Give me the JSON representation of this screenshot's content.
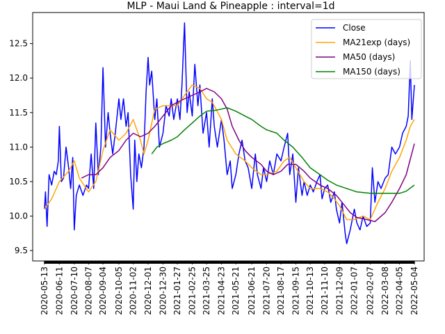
{
  "chart_data": {
    "type": "line",
    "title": "MLP - Maui Land & Pineapple : interval=1d",
    "xlabel": "",
    "ylabel": "",
    "xlim": [
      "2020-04-20",
      "2022-05-23"
    ],
    "ylim": [
      9.35,
      12.95
    ],
    "y_ticks": [
      "9.5",
      "10.0",
      "10.5",
      "11.0",
      "11.5",
      "12.0",
      "12.5"
    ],
    "x_ticks": [
      "2020-05-13",
      "2020-06-11",
      "2020-07-10",
      "2020-08-07",
      "2020-09-04",
      "2020-10-05",
      "2020-11-02",
      "2020-12-01",
      "2020-12-30",
      "2021-01-27",
      "2021-02-25",
      "2021-03-25",
      "2021-04-23",
      "2021-05-21",
      "2021-06-21",
      "2021-07-20",
      "2021-08-17",
      "2021-09-15",
      "2021-10-13",
      "2021-11-10",
      "2021-12-09",
      "2022-01-07",
      "2022-02-07",
      "2022-03-08",
      "2022-04-05",
      "2022-05-04"
    ],
    "legend_position": "top-right",
    "grid": false,
    "series": [
      {
        "name": "Close",
        "color": "#0000ff",
        "points": [
          [
            "2020-05-13",
            10.1
          ],
          [
            "2020-05-15",
            10.35
          ],
          [
            "2020-05-18",
            9.85
          ],
          [
            "2020-05-20",
            10.2
          ],
          [
            "2020-05-22",
            10.6
          ],
          [
            "2020-05-27",
            10.45
          ],
          [
            "2020-06-01",
            10.65
          ],
          [
            "2020-06-05",
            10.6
          ],
          [
            "2020-06-09",
            10.8
          ],
          [
            "2020-06-11",
            11.3
          ],
          [
            "2020-06-15",
            10.5
          ],
          [
            "2020-06-19",
            10.55
          ],
          [
            "2020-06-24",
            11.0
          ],
          [
            "2020-06-29",
            10.7
          ],
          [
            "2020-07-03",
            10.4
          ],
          [
            "2020-07-07",
            10.85
          ],
          [
            "2020-07-10",
            9.8
          ],
          [
            "2020-07-14",
            10.3
          ],
          [
            "2020-07-20",
            10.45
          ],
          [
            "2020-07-27",
            10.3
          ],
          [
            "2020-08-03",
            10.45
          ],
          [
            "2020-08-07",
            10.4
          ],
          [
            "2020-08-12",
            10.9
          ],
          [
            "2020-08-17",
            10.4
          ],
          [
            "2020-08-21",
            11.35
          ],
          [
            "2020-08-26",
            10.6
          ],
          [
            "2020-08-31",
            11.0
          ],
          [
            "2020-09-04",
            12.15
          ],
          [
            "2020-09-09",
            11.0
          ],
          [
            "2020-09-14",
            11.5
          ],
          [
            "2020-09-18",
            11.2
          ],
          [
            "2020-09-23",
            10.9
          ],
          [
            "2020-09-28",
            11.2
          ],
          [
            "2020-10-05",
            11.7
          ],
          [
            "2020-10-09",
            11.4
          ],
          [
            "2020-10-14",
            11.7
          ],
          [
            "2020-10-19",
            11.3
          ],
          [
            "2020-10-23",
            11.5
          ],
          [
            "2020-10-28",
            10.6
          ],
          [
            "2020-11-02",
            10.1
          ],
          [
            "2020-11-05",
            11.1
          ],
          [
            "2020-11-09",
            10.5
          ],
          [
            "2020-11-13",
            10.9
          ],
          [
            "2020-11-18",
            10.7
          ],
          [
            "2020-11-23",
            11.0
          ],
          [
            "2020-11-27",
            11.8
          ],
          [
            "2020-12-01",
            12.3
          ],
          [
            "2020-12-04",
            11.9
          ],
          [
            "2020-12-08",
            12.1
          ],
          [
            "2020-12-14",
            11.4
          ],
          [
            "2020-12-18",
            11.7
          ],
          [
            "2020-12-23",
            11.0
          ],
          [
            "2020-12-30",
            11.2
          ],
          [
            "2021-01-05",
            11.6
          ],
          [
            "2021-01-11",
            11.45
          ],
          [
            "2021-01-15",
            11.7
          ],
          [
            "2021-01-20",
            11.4
          ],
          [
            "2021-01-27",
            11.7
          ],
          [
            "2021-02-01",
            11.4
          ],
          [
            "2021-02-05",
            11.9
          ],
          [
            "2021-02-10",
            12.8
          ],
          [
            "2021-02-15",
            11.5
          ],
          [
            "2021-02-19",
            11.8
          ],
          [
            "2021-02-25",
            11.45
          ],
          [
            "2021-03-02",
            12.2
          ],
          [
            "2021-03-08",
            11.6
          ],
          [
            "2021-03-12",
            11.9
          ],
          [
            "2021-03-18",
            11.2
          ],
          [
            "2021-03-25",
            11.5
          ],
          [
            "2021-03-30",
            11.0
          ],
          [
            "2021-04-05",
            11.7
          ],
          [
            "2021-04-09",
            11.3
          ],
          [
            "2021-04-15",
            11.0
          ],
          [
            "2021-04-23",
            11.4
          ],
          [
            "2021-04-28",
            11.1
          ],
          [
            "2021-05-04",
            10.6
          ],
          [
            "2021-05-10",
            10.8
          ],
          [
            "2021-05-14",
            10.4
          ],
          [
            "2021-05-21",
            10.6
          ],
          [
            "2021-05-27",
            10.9
          ],
          [
            "2021-06-02",
            11.1
          ],
          [
            "2021-06-08",
            10.8
          ],
          [
            "2021-06-14",
            10.7
          ],
          [
            "2021-06-21",
            10.4
          ],
          [
            "2021-06-28",
            10.9
          ],
          [
            "2021-07-02",
            10.6
          ],
          [
            "2021-07-09",
            10.4
          ],
          [
            "2021-07-14",
            10.7
          ],
          [
            "2021-07-20",
            10.5
          ],
          [
            "2021-07-26",
            10.8
          ],
          [
            "2021-08-02",
            10.6
          ],
          [
            "2021-08-09",
            10.9
          ],
          [
            "2021-08-17",
            10.8
          ],
          [
            "2021-08-23",
            11.0
          ],
          [
            "2021-08-30",
            11.2
          ],
          [
            "2021-09-03",
            10.6
          ],
          [
            "2021-09-09",
            10.9
          ],
          [
            "2021-09-15",
            10.2
          ],
          [
            "2021-09-20",
            10.7
          ],
          [
            "2021-09-27",
            10.3
          ],
          [
            "2021-10-01",
            10.5
          ],
          [
            "2021-10-07",
            10.3
          ],
          [
            "2021-10-13",
            10.45
          ],
          [
            "2021-10-19",
            10.35
          ],
          [
            "2021-10-26",
            10.5
          ],
          [
            "2021-11-01",
            10.6
          ],
          [
            "2021-11-05",
            10.25
          ],
          [
            "2021-11-10",
            10.4
          ],
          [
            "2021-11-16",
            10.45
          ],
          [
            "2021-11-22",
            10.2
          ],
          [
            "2021-11-29",
            10.35
          ],
          [
            "2021-12-03",
            10.1
          ],
          [
            "2021-12-09",
            9.9
          ],
          [
            "2021-12-14",
            10.2
          ],
          [
            "2021-12-20",
            9.75
          ],
          [
            "2021-12-23",
            9.6
          ],
          [
            "2021-12-30",
            9.8
          ],
          [
            "2022-01-07",
            10.1
          ],
          [
            "2022-01-12",
            9.9
          ],
          [
            "2022-01-18",
            9.8
          ],
          [
            "2022-01-24",
            10.0
          ],
          [
            "2022-01-31",
            9.85
          ],
          [
            "2022-02-07",
            9.9
          ],
          [
            "2022-02-11",
            10.7
          ],
          [
            "2022-02-16",
            10.2
          ],
          [
            "2022-02-22",
            10.5
          ],
          [
            "2022-02-28",
            10.4
          ],
          [
            "2022-03-08",
            10.55
          ],
          [
            "2022-03-14",
            10.6
          ],
          [
            "2022-03-21",
            11.0
          ],
          [
            "2022-03-28",
            10.9
          ],
          [
            "2022-04-05",
            11.0
          ],
          [
            "2022-04-11",
            11.2
          ],
          [
            "2022-04-18",
            11.3
          ],
          [
            "2022-04-22",
            11.45
          ],
          [
            "2022-04-26",
            12.25
          ],
          [
            "2022-04-29",
            11.4
          ],
          [
            "2022-05-04",
            11.9
          ]
        ]
      },
      {
        "name": "MA21exp (days)",
        "color": "#ffa500",
        "points": [
          [
            "2020-05-13",
            10.1
          ],
          [
            "2020-05-27",
            10.25
          ],
          [
            "2020-06-11",
            10.5
          ],
          [
            "2020-06-29",
            10.65
          ],
          [
            "2020-07-10",
            10.8
          ],
          [
            "2020-07-20",
            10.55
          ],
          [
            "2020-08-07",
            10.35
          ],
          [
            "2020-08-21",
            10.5
          ],
          [
            "2020-09-04",
            10.95
          ],
          [
            "2020-09-18",
            11.25
          ],
          [
            "2020-10-05",
            11.1
          ],
          [
            "2020-10-19",
            11.2
          ],
          [
            "2020-11-02",
            11.4
          ],
          [
            "2020-11-16",
            11.1
          ],
          [
            "2020-11-23",
            10.9
          ],
          [
            "2020-12-01",
            11.1
          ],
          [
            "2020-12-14",
            11.55
          ],
          [
            "2020-12-30",
            11.6
          ],
          [
            "2021-01-27",
            11.6
          ],
          [
            "2021-02-10",
            11.75
          ],
          [
            "2021-02-25",
            11.9
          ],
          [
            "2021-03-12",
            11.85
          ],
          [
            "2021-03-25",
            11.7
          ],
          [
            "2021-04-05",
            11.65
          ],
          [
            "2021-04-23",
            11.4
          ],
          [
            "2021-05-04",
            11.1
          ],
          [
            "2021-05-21",
            10.9
          ],
          [
            "2021-06-08",
            10.8
          ],
          [
            "2021-06-21",
            10.7
          ],
          [
            "2021-07-09",
            10.6
          ],
          [
            "2021-07-20",
            10.6
          ],
          [
            "2021-08-09",
            10.65
          ],
          [
            "2021-08-23",
            10.8
          ],
          [
            "2021-09-03",
            10.85
          ],
          [
            "2021-09-15",
            10.7
          ],
          [
            "2021-10-01",
            10.5
          ],
          [
            "2021-10-13",
            10.4
          ],
          [
            "2021-11-01",
            10.4
          ],
          [
            "2021-11-16",
            10.35
          ],
          [
            "2021-11-29",
            10.25
          ],
          [
            "2021-12-09",
            10.15
          ],
          [
            "2021-12-23",
            9.95
          ],
          [
            "2022-01-07",
            9.95
          ],
          [
            "2022-01-24",
            10.0
          ],
          [
            "2022-02-07",
            9.95
          ],
          [
            "2022-02-22",
            10.2
          ],
          [
            "2022-03-08",
            10.4
          ],
          [
            "2022-03-21",
            10.65
          ],
          [
            "2022-04-05",
            10.85
          ],
          [
            "2022-04-18",
            11.1
          ],
          [
            "2022-04-26",
            11.3
          ],
          [
            "2022-05-04",
            11.4
          ]
        ]
      },
      {
        "name": "MA50 (days)",
        "color": "#800080",
        "points": [
          [
            "2020-07-24",
            10.55
          ],
          [
            "2020-08-07",
            10.6
          ],
          [
            "2020-08-21",
            10.6
          ],
          [
            "2020-09-04",
            10.7
          ],
          [
            "2020-09-18",
            10.85
          ],
          [
            "2020-10-05",
            10.95
          ],
          [
            "2020-10-19",
            11.1
          ],
          [
            "2020-11-02",
            11.2
          ],
          [
            "2020-11-16",
            11.15
          ],
          [
            "2020-12-01",
            11.2
          ],
          [
            "2020-12-14",
            11.3
          ],
          [
            "2020-12-30",
            11.45
          ],
          [
            "2021-01-15",
            11.6
          ],
          [
            "2021-01-27",
            11.65
          ],
          [
            "2021-02-10",
            11.7
          ],
          [
            "2021-02-25",
            11.75
          ],
          [
            "2021-03-12",
            11.8
          ],
          [
            "2021-03-25",
            11.85
          ],
          [
            "2021-04-09",
            11.8
          ],
          [
            "2021-04-23",
            11.7
          ],
          [
            "2021-05-04",
            11.55
          ],
          [
            "2021-05-14",
            11.3
          ],
          [
            "2021-05-27",
            11.1
          ],
          [
            "2021-06-08",
            10.95
          ],
          [
            "2021-06-21",
            10.85
          ],
          [
            "2021-07-09",
            10.75
          ],
          [
            "2021-07-20",
            10.65
          ],
          [
            "2021-08-02",
            10.6
          ],
          [
            "2021-08-17",
            10.65
          ],
          [
            "2021-08-30",
            10.75
          ],
          [
            "2021-09-15",
            10.75
          ],
          [
            "2021-10-01",
            10.65
          ],
          [
            "2021-10-13",
            10.55
          ],
          [
            "2021-11-01",
            10.45
          ],
          [
            "2021-11-16",
            10.4
          ],
          [
            "2021-12-03",
            10.3
          ],
          [
            "2021-12-14",
            10.2
          ],
          [
            "2021-12-30",
            10.05
          ],
          [
            "2022-01-12",
            9.98
          ],
          [
            "2022-01-31",
            9.95
          ],
          [
            "2022-02-16",
            9.92
          ],
          [
            "2022-03-08",
            10.05
          ],
          [
            "2022-03-21",
            10.2
          ],
          [
            "2022-04-05",
            10.4
          ],
          [
            "2022-04-18",
            10.6
          ],
          [
            "2022-05-04",
            11.05
          ]
        ]
      },
      {
        "name": "MA150 (days)",
        "color": "#008000",
        "points": [
          [
            "2020-12-08",
            10.9
          ],
          [
            "2020-12-18",
            11.0
          ],
          [
            "2020-12-30",
            11.05
          ],
          [
            "2021-01-15",
            11.1
          ],
          [
            "2021-01-27",
            11.15
          ],
          [
            "2021-02-10",
            11.25
          ],
          [
            "2021-02-25",
            11.35
          ],
          [
            "2021-03-12",
            11.45
          ],
          [
            "2021-03-25",
            11.52
          ],
          [
            "2021-04-09",
            11.53
          ],
          [
            "2021-04-23",
            11.55
          ],
          [
            "2021-05-04",
            11.57
          ],
          [
            "2021-05-21",
            11.52
          ],
          [
            "2021-06-08",
            11.45
          ],
          [
            "2021-06-21",
            11.4
          ],
          [
            "2021-07-09",
            11.3
          ],
          [
            "2021-07-20",
            11.25
          ],
          [
            "2021-08-09",
            11.2
          ],
          [
            "2021-08-23",
            11.1
          ],
          [
            "2021-09-09",
            11.0
          ],
          [
            "2021-09-27",
            10.85
          ],
          [
            "2021-10-13",
            10.7
          ],
          [
            "2021-11-01",
            10.6
          ],
          [
            "2021-11-16",
            10.52
          ],
          [
            "2021-12-03",
            10.45
          ],
          [
            "2021-12-23",
            10.4
          ],
          [
            "2022-01-12",
            10.35
          ],
          [
            "2022-02-07",
            10.33
          ],
          [
            "2022-02-28",
            10.33
          ],
          [
            "2022-03-14",
            10.33
          ],
          [
            "2022-04-05",
            10.33
          ],
          [
            "2022-04-18",
            10.36
          ],
          [
            "2022-05-04",
            10.45
          ]
        ]
      }
    ]
  }
}
